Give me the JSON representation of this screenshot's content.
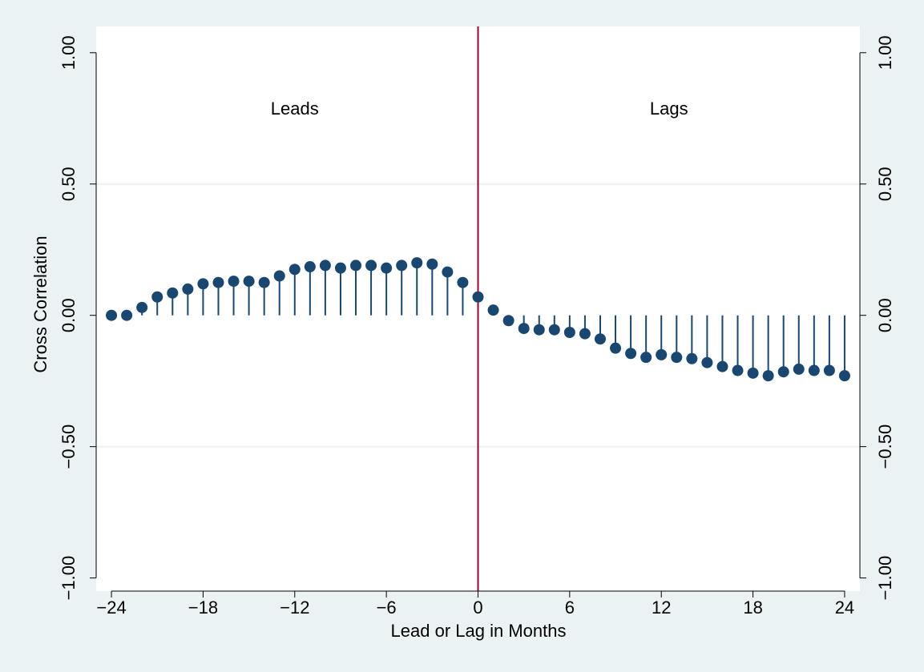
{
  "chart_data": {
    "type": "spike",
    "x_label": "Lead or Lag in Months",
    "y_label": "Cross Correlation",
    "annotations": [
      "Leads",
      "Lags"
    ],
    "x": [
      -24,
      -23,
      -22,
      -21,
      -20,
      -19,
      -18,
      -17,
      -16,
      -15,
      -14,
      -13,
      -12,
      -11,
      -10,
      -9,
      -8,
      -7,
      -6,
      -5,
      -4,
      -3,
      -2,
      -1,
      0,
      1,
      2,
      3,
      4,
      5,
      6,
      7,
      8,
      9,
      10,
      11,
      12,
      13,
      14,
      15,
      16,
      17,
      18,
      19,
      20,
      21,
      22,
      23,
      24
    ],
    "values": [
      0.0,
      0.0,
      0.03,
      0.07,
      0.085,
      0.1,
      0.12,
      0.125,
      0.13,
      0.13,
      0.125,
      0.15,
      0.175,
      0.185,
      0.19,
      0.18,
      0.19,
      0.19,
      0.18,
      0.19,
      0.2,
      0.195,
      0.165,
      0.125,
      0.07,
      0.02,
      -0.02,
      -0.05,
      -0.055,
      -0.055,
      -0.065,
      -0.07,
      -0.09,
      -0.125,
      -0.145,
      -0.16,
      -0.15,
      -0.16,
      -0.165,
      -0.18,
      -0.195,
      -0.21,
      -0.22,
      -0.23,
      -0.215,
      -0.205,
      -0.21,
      -0.21,
      -0.23
    ],
    "color": "#1a476f",
    "reference_line_color": "#990033",
    "xlim": [
      -25,
      25
    ],
    "ylim": [
      -1.05,
      1.1
    ],
    "xticks": [
      {
        "value": -24,
        "label": "−24"
      },
      {
        "value": -18,
        "label": "−18"
      },
      {
        "value": -12,
        "label": "−12"
      },
      {
        "value": -6,
        "label": "−6"
      },
      0,
      6,
      12,
      18,
      24
    ],
    "yticks": [
      {
        "value": -1,
        "label": "−1.00"
      },
      {
        "value": -0.5,
        "label": "−0.50"
      },
      {
        "value": 0,
        "label": "0.00"
      },
      {
        "value": 0.5,
        "label": "0.50"
      },
      {
        "value": 1,
        "label": "1.00"
      }
    ],
    "grid": true
  }
}
